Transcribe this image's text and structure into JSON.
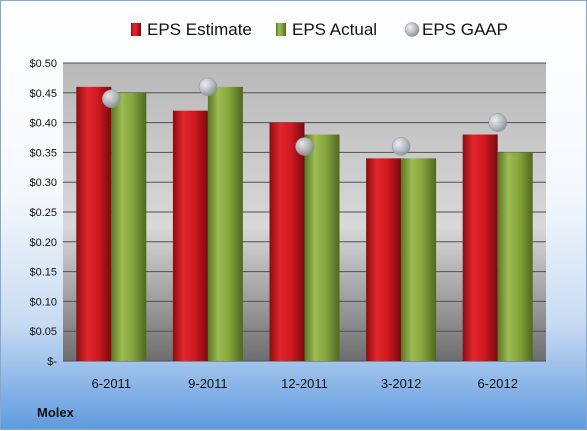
{
  "chart_data": {
    "type": "bar",
    "categories": [
      "6-2011",
      "9-2011",
      "12-2011",
      "3-2012",
      "6-2012"
    ],
    "series": [
      {
        "name": "EPS Estimate",
        "kind": "bar",
        "color": "#c8161d",
        "values": [
          0.46,
          0.42,
          0.4,
          0.34,
          0.38
        ]
      },
      {
        "name": "EPS Actual",
        "kind": "bar",
        "color": "#7a9a36",
        "values": [
          0.45,
          0.46,
          0.38,
          0.34,
          0.35
        ]
      },
      {
        "name": "EPS GAAP",
        "kind": "scatter",
        "color": "#b8bcc4",
        "values": [
          0.44,
          0.46,
          0.36,
          0.36,
          0.4
        ]
      }
    ],
    "ylim": [
      0,
      0.5
    ],
    "yticks": [
      0,
      0.05,
      0.1,
      0.15,
      0.2,
      0.25,
      0.3,
      0.35,
      0.4,
      0.45,
      0.5
    ],
    "ytick_labels": [
      "$-",
      "$0.05",
      "$0.10",
      "$0.15",
      "$0.20",
      "$0.25",
      "$0.30",
      "$0.35",
      "$0.40",
      "$0.45",
      "$0.50"
    ],
    "grid": true,
    "legend": "top",
    "company": "Molex"
  }
}
